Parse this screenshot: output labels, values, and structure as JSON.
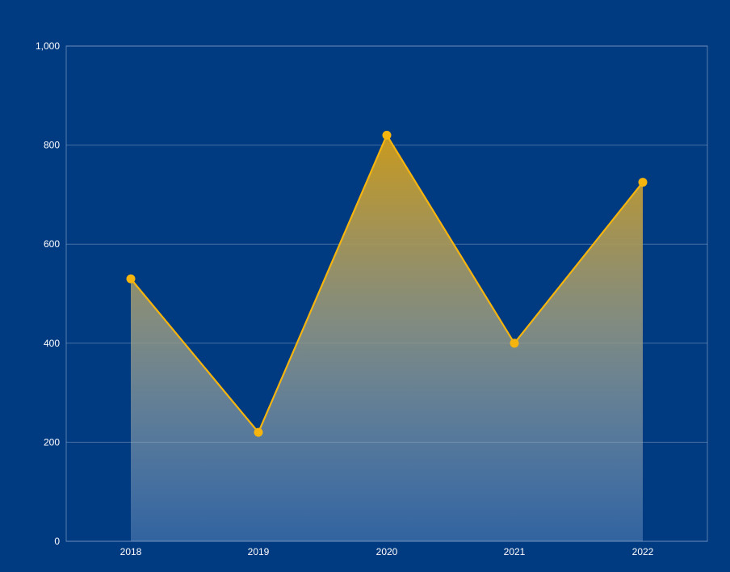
{
  "colors": {
    "background": "#003a80",
    "line": "#f5b50e",
    "grid": "#7f9cc4",
    "text": "#ffffff"
  },
  "chart_data": {
    "type": "area",
    "categories": [
      "2018",
      "2019",
      "2020",
      "2021",
      "2022"
    ],
    "series": [
      {
        "values": [
          530,
          220,
          820,
          400,
          725
        ]
      }
    ],
    "title": "",
    "xlabel": "",
    "ylabel": "",
    "ylim": [
      0,
      1000
    ],
    "yticks": [
      "0",
      "200",
      "400",
      "600",
      "800",
      "1,000"
    ],
    "grid": true,
    "legend": "none"
  }
}
